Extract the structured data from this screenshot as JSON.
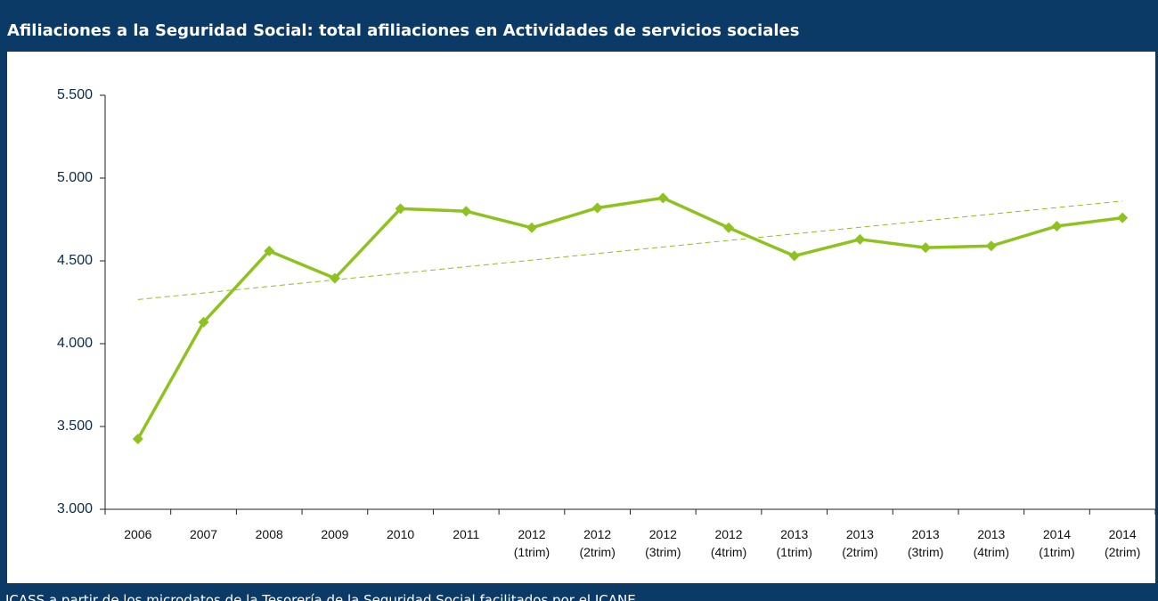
{
  "chart_data": {
    "type": "line",
    "title": "Afiliaciones a la Seguridad Social: total afiliaciones en Actividades de servicios sociales",
    "source": "ICASS a partir de los microdatos de la Tesorería de la Seguridad Social facilitados por el ICANE",
    "categories": [
      "2006",
      "2007",
      "2008",
      "2009",
      "2010",
      "2011",
      "2012 (1trim)",
      "2012 (2trim)",
      "2012 (3trim)",
      "2012 (4trim)",
      "2013 (1trim)",
      "2013 (2trim)",
      "2013 (3trim)",
      "2013 (4trim)",
      "2014 (1trim)",
      "2014 (2trim)"
    ],
    "values": [
      3425,
      4130,
      4560,
      4395,
      4815,
      4800,
      4700,
      4820,
      4880,
      4700,
      4530,
      4630,
      4580,
      4590,
      4710,
      4760
    ],
    "color": "#8dc21f",
    "trendline": true,
    "ylim": [
      3000,
      5500
    ],
    "yticks": [
      {
        "value": 3000,
        "label": "3.000"
      },
      {
        "value": 3500,
        "label": "3.500"
      },
      {
        "value": 4000,
        "label": "4.000"
      },
      {
        "value": 4500,
        "label": "4.500"
      },
      {
        "value": 5000,
        "label": "5.000"
      },
      {
        "value": 5500,
        "label": "5.500"
      }
    ]
  }
}
